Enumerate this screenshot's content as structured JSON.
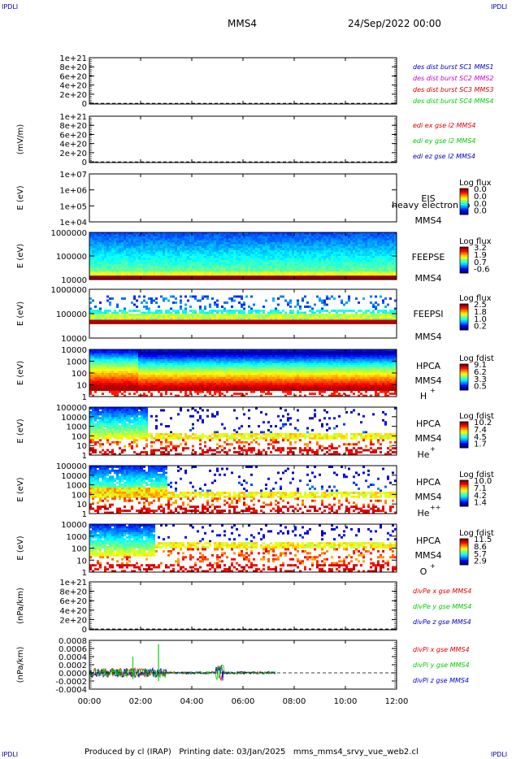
{
  "header": {
    "corner_left_top": "IPDLI",
    "corner_right_top": "IPDLI",
    "corner_left_bottom": "IPDLI",
    "corner_right_bottom": "IPDLI",
    "spacecraft": "MMS4",
    "date": "24/Sep/2022 00:00"
  },
  "footer": {
    "text": "Produced by cl (IRAP)   Printing date: 03/Jan/2025   mms_mms4_srvy_vue_web2.cl"
  },
  "chart_data": {
    "type": "multi-panel",
    "x_axis": {
      "ticks": [
        "00:00",
        "02:00",
        "04:00",
        "06:00",
        "08:00",
        "10:00",
        "12:00"
      ],
      "range_hours": [
        0,
        12
      ]
    },
    "panels": [
      {
        "type": "line",
        "id": "des_dist",
        "ylabel": "",
        "ticks": [
          "1e+21",
          "8e+20",
          "6e+20",
          "4e+20",
          "2e+20",
          "0"
        ],
        "dashed_zero": true,
        "legend": [
          {
            "text": "des dist burst SC1 MMS1",
            "color": "#0000cc"
          },
          {
            "text": "des dist burst SC2 MMS2",
            "color": "#cc00cc"
          },
          {
            "text": "des dist burst SC3 MMS3",
            "color": "#dd0000"
          },
          {
            "text": "des dist burst SC4 MMS4",
            "color": "#00cc00"
          }
        ]
      },
      {
        "type": "line",
        "id": "edi_e",
        "ylabel": "(mV/m)",
        "ticks": [
          "1e+21",
          "8e+20",
          "6e+20",
          "4e+20",
          "2e+20",
          "0"
        ],
        "dashed_zero": true,
        "legend": [
          {
            "text": "edi ex gse l2 MMS4",
            "color": "#dd0000"
          },
          {
            "text": "edi ey gse l2 MMS4",
            "color": "#00cc00"
          },
          {
            "text": "edi ez gse l2 MMS4",
            "color": "#0000cc"
          }
        ]
      },
      {
        "type": "heatmap",
        "id": "eis",
        "ylabel": "E (eV)",
        "ticks": [
          "1e+07",
          "1e+06",
          "1e+05",
          "1e+04"
        ],
        "right_labels": [
          "EIS",
          "MMS4"
        ],
        "overlay_text": "heavy electron to",
        "colorbar_title": "Log flux",
        "colorbar_ticks": [
          "0.0",
          "0.0",
          "0.0",
          "0.0"
        ],
        "data_end_hours": 0
      },
      {
        "type": "heatmap",
        "id": "feepse",
        "ylabel": "E (eV)",
        "ticks": [
          "1000000",
          "100000",
          "10000"
        ],
        "right_labels": [
          "FEEPSE",
          "MMS4"
        ],
        "colorbar_title": "Log flux",
        "colorbar_ticks": [
          "3.2",
          "1.9",
          "0.7",
          "-0.6"
        ],
        "data_end_hours": 12
      },
      {
        "type": "heatmap",
        "id": "feepsi",
        "ylabel": "E (eV)",
        "ticks": [
          "1000000",
          "100000",
          "10000"
        ],
        "right_labels": [
          "FEEPSI",
          "MMS4"
        ],
        "colorbar_title": "Log flux",
        "colorbar_ticks": [
          "2.5",
          "1.8",
          "1.0",
          "0.2"
        ],
        "data_end_hours": 12
      },
      {
        "type": "heatmap",
        "id": "hpca_h",
        "ylabel": "E (eV)",
        "ticks": [
          "10000",
          "1000",
          "100",
          "10",
          "1"
        ],
        "right_labels": [
          "HPCA",
          "MMS4"
        ],
        "species": "H",
        "species_sup": "+",
        "colorbar_title": "Log fdist",
        "colorbar_ticks": [
          "9.1",
          "6.2",
          "3.3",
          "0.5"
        ],
        "data_end_hours": 12
      },
      {
        "type": "heatmap",
        "id": "hpca_he",
        "ylabel": "E (eV)",
        "ticks": [
          "100000",
          "10000",
          "1000",
          "100",
          "10",
          "1"
        ],
        "right_labels": [
          "HPCA",
          "MMS4"
        ],
        "species": "He",
        "species_sup": "+",
        "colorbar_title": "Log fdist",
        "colorbar_ticks": [
          "10.2",
          "7.4",
          "4.5",
          "1.7"
        ],
        "data_end_hours": 12
      },
      {
        "type": "heatmap",
        "id": "hpca_he2",
        "ylabel": "E (eV)",
        "ticks": [
          "100000",
          "10000",
          "1000",
          "100",
          "10",
          "1"
        ],
        "right_labels": [
          "HPCA",
          "MMS4"
        ],
        "species": "He",
        "species_sup": "++",
        "colorbar_title": "Log fdist",
        "colorbar_ticks": [
          "10.0",
          "7.1",
          "4.2",
          "1.4"
        ],
        "data_end_hours": 12
      },
      {
        "type": "heatmap",
        "id": "hpca_o",
        "ylabel": "E (eV)",
        "ticks": [
          "10000",
          "1000",
          "100",
          "10",
          "1"
        ],
        "right_labels": [
          "HPCA",
          "MMS4"
        ],
        "species": "O",
        "species_sup": "+",
        "colorbar_title": "Log fdist",
        "colorbar_ticks": [
          "11.5",
          "8.6",
          "5.7",
          "2.9"
        ],
        "data_end_hours": 12
      },
      {
        "type": "line",
        "id": "divpe",
        "ylabel": "(nPa/km)",
        "ticks": [
          "1e+21",
          "8e+20",
          "6e+20",
          "4e+20",
          "2e+20",
          "0"
        ],
        "dashed_zero": true,
        "legend": [
          {
            "text": "divPe x gse MMS4",
            "color": "#dd0000"
          },
          {
            "text": "divPe y gse MMS4",
            "color": "#00cc00"
          },
          {
            "text": "divPe z gse MMS4",
            "color": "#0000cc"
          }
        ]
      },
      {
        "type": "line",
        "id": "divpi",
        "ylabel": "(nPa/km)",
        "ticks": [
          "0.0008",
          "0.0006",
          "0.0004",
          "0.0002",
          "0.0000",
          "-0.0002",
          "-0.0004"
        ],
        "dashed_zero": true,
        "data_end_hours": 7.3,
        "legend": [
          {
            "text": "divPi x gse MMS4",
            "color": "#dd0000"
          },
          {
            "text": "divPi y gse MMS4",
            "color": "#00cc00"
          },
          {
            "text": "divPi z gse MMS4",
            "color": "#0000cc"
          }
        ]
      }
    ]
  }
}
